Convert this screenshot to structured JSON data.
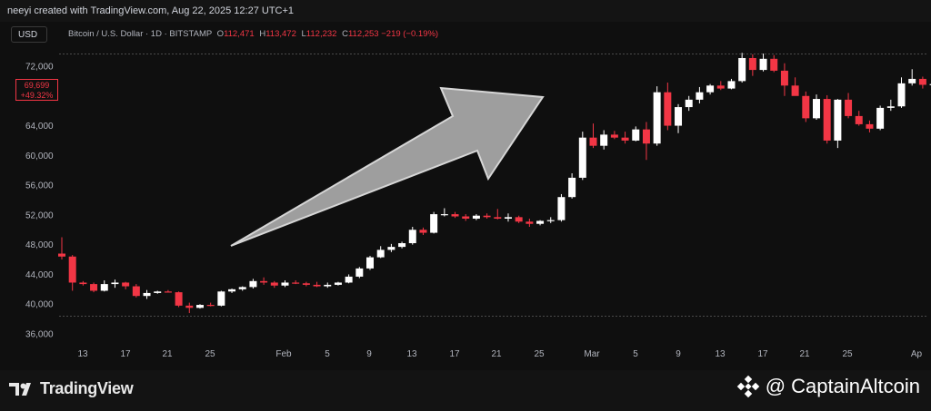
{
  "header": {
    "attribution": "neeyi created with TradingView.com, Aug 22, 2025 12:27 UTC+1"
  },
  "toolbar": {
    "currency": "USD",
    "symbol": "Bitcoin / U.S. Dollar · 1D · BITSTAMP",
    "open_label": "O",
    "open_value": "112,471",
    "high_label": "H",
    "high_value": "113,472",
    "low_label": "L",
    "low_value": "112,232",
    "close_label": "C",
    "close_value": "112,253",
    "change": "−219 (−0.19%)"
  },
  "price_tag": {
    "price": "69,699",
    "percent": "+49.32%"
  },
  "footer": {
    "brand": "TradingView",
    "watermark": "@ CaptainAltcoin"
  },
  "colors": {
    "up": "#ffffff",
    "down": "#f23645",
    "background": "#0f0f0f",
    "axis_text": "#b2b5be",
    "arrow": "#a6a6a6"
  },
  "icons": [
    "tradingview-logo-icon",
    "binance-logo-icon",
    "trend-up-arrow"
  ],
  "chart_data": {
    "type": "candlestick",
    "title": "Bitcoin / U.S. Dollar · 1D · BITSTAMP",
    "y_ticks": [
      36000,
      40000,
      44000,
      48000,
      52000,
      56000,
      60000,
      64000,
      72000
    ],
    "y_tick_labels": [
      "36,000",
      "40,000",
      "44,000",
      "48,000",
      "52,000",
      "56,000",
      "60,000",
      "64,000",
      "72,000"
    ],
    "x_tick_labels": [
      "13",
      "17",
      "21",
      "25",
      "Feb",
      "5",
      "9",
      "13",
      "17",
      "21",
      "25",
      "Mar",
      "5",
      "9",
      "13",
      "17",
      "21",
      "25",
      "Ap"
    ],
    "ylim": [
      34500,
      73500
    ],
    "grid": false,
    "candles": [
      [
        46800,
        49000,
        46000,
        46400
      ],
      [
        46400,
        46600,
        41800,
        42900
      ],
      [
        42900,
        43100,
        42500,
        42700
      ],
      [
        42700,
        42900,
        41600,
        41800
      ],
      [
        41800,
        43200,
        41700,
        42700
      ],
      [
        42700,
        43300,
        42200,
        42900
      ],
      [
        42900,
        43000,
        42000,
        42400
      ],
      [
        42400,
        42700,
        40900,
        41100
      ],
      [
        41100,
        41900,
        40700,
        41500
      ],
      [
        41500,
        41800,
        41400,
        41700
      ],
      [
        41700,
        41900,
        41600,
        41600
      ],
      [
        41600,
        41700,
        39600,
        39800
      ],
      [
        39800,
        40200,
        38800,
        39500
      ],
      [
        39500,
        40000,
        39400,
        39900
      ],
      [
        39900,
        40200,
        39700,
        39800
      ],
      [
        39800,
        41800,
        39700,
        41700
      ],
      [
        41700,
        42100,
        41500,
        42000
      ],
      [
        42000,
        42400,
        41800,
        42300
      ],
      [
        42300,
        43400,
        42100,
        43100
      ],
      [
        43100,
        43600,
        42600,
        42900
      ],
      [
        42900,
        43100,
        42200,
        42500
      ],
      [
        42500,
        43200,
        42300,
        42900
      ],
      [
        42900,
        43200,
        42700,
        42800
      ],
      [
        42800,
        43000,
        42400,
        42600
      ],
      [
        42600,
        43000,
        42300,
        42400
      ],
      [
        42400,
        42900,
        42200,
        42600
      ],
      [
        42600,
        43000,
        42500,
        42900
      ],
      [
        42900,
        44000,
        42800,
        43700
      ],
      [
        43700,
        45000,
        43500,
        44800
      ],
      [
        44800,
        46500,
        44600,
        46300
      ],
      [
        46300,
        47800,
        46200,
        47300
      ],
      [
        47300,
        48100,
        47000,
        47700
      ],
      [
        47700,
        48400,
        47500,
        48200
      ],
      [
        48200,
        50400,
        48000,
        50000
      ],
      [
        50000,
        50300,
        49300,
        49600
      ],
      [
        49600,
        52400,
        49500,
        52100
      ],
      [
        52100,
        52900,
        51800,
        52100
      ],
      [
        52100,
        52400,
        51600,
        51800
      ],
      [
        51800,
        52100,
        51200,
        51500
      ],
      [
        51500,
        52100,
        51300,
        51900
      ],
      [
        51900,
        52200,
        51500,
        51700
      ],
      [
        51700,
        52800,
        51400,
        51500
      ],
      [
        51500,
        52200,
        51100,
        51700
      ],
      [
        51700,
        51900,
        50900,
        51100
      ],
      [
        51100,
        51500,
        50400,
        50800
      ],
      [
        50800,
        51300,
        50600,
        51200
      ],
      [
        51200,
        51700,
        50900,
        51300
      ],
      [
        51300,
        54800,
        51100,
        54400
      ],
      [
        54400,
        57600,
        54200,
        57000
      ],
      [
        57000,
        63200,
        56700,
        62400
      ],
      [
        62400,
        64300,
        61000,
        61300
      ],
      [
        61300,
        63400,
        60800,
        62800
      ],
      [
        62800,
        63300,
        62200,
        62400
      ],
      [
        62400,
        63200,
        61600,
        62000
      ],
      [
        62000,
        63900,
        61900,
        63500
      ],
      [
        63500,
        64500,
        59400,
        61600
      ],
      [
        61600,
        69300,
        61300,
        68500
      ],
      [
        68500,
        69800,
        63400,
        64000
      ],
      [
        64000,
        66900,
        63000,
        66500
      ],
      [
        66500,
        68000,
        66000,
        67500
      ],
      [
        67500,
        69200,
        67000,
        68500
      ],
      [
        68500,
        69600,
        68200,
        69400
      ],
      [
        69400,
        70000,
        68800,
        69000
      ],
      [
        69000,
        70300,
        68900,
        70000
      ],
      [
        70000,
        73800,
        69800,
        73100
      ],
      [
        73100,
        73600,
        70700,
        71500
      ],
      [
        71500,
        73700,
        71300,
        73000
      ],
      [
        73000,
        73500,
        71200,
        71400
      ],
      [
        71400,
        72400,
        68000,
        69400
      ],
      [
        69400,
        70500,
        68300,
        68000
      ],
      [
        68000,
        68600,
        64500,
        65000
      ],
      [
        65000,
        68200,
        64800,
        67600
      ],
      [
        67600,
        68100,
        61600,
        62000
      ],
      [
        62000,
        67600,
        61000,
        67500
      ],
      [
        67500,
        68400,
        65000,
        65300
      ],
      [
        65300,
        66000,
        64000,
        64200
      ],
      [
        64200,
        64700,
        63100,
        63600
      ],
      [
        63600,
        66700,
        63400,
        66400
      ],
      [
        66400,
        67500,
        66000,
        66600
      ],
      [
        66600,
        70500,
        66400,
        69700
      ],
      [
        69700,
        71600,
        69400,
        70300
      ],
      [
        70300,
        70600,
        69000,
        69500
      ],
      [
        69500,
        70800,
        68600,
        69600
      ],
      [
        69600,
        71600,
        69200,
        70700
      ],
      [
        70700,
        71300,
        69900,
        70100
      ],
      [
        70100,
        70500,
        69700,
        69900
      ],
      [
        69900,
        71500,
        69600,
        71300
      ],
      [
        71300,
        71500,
        68600,
        69700
      ]
    ]
  }
}
